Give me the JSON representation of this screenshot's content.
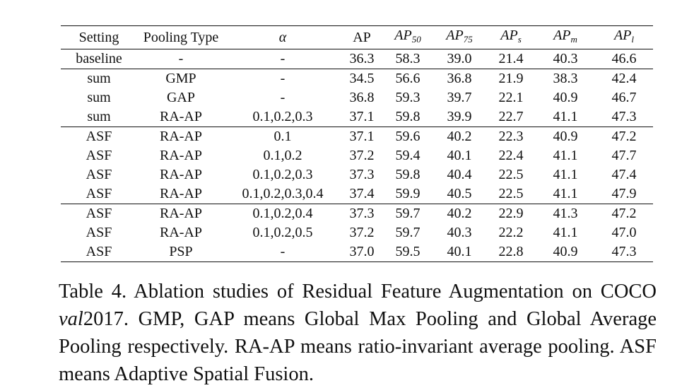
{
  "table": {
    "headers": {
      "setting": "Setting",
      "pooling_type": "Pooling Type",
      "alpha": "α",
      "ap": "AP",
      "ap50_base": "AP",
      "ap50_sub": "50",
      "ap75_base": "AP",
      "ap75_sub": "75",
      "aps_base": "AP",
      "aps_sub": "s",
      "apm_base": "AP",
      "apm_sub": "m",
      "apl_base": "AP",
      "apl_sub": "l"
    },
    "rows": [
      {
        "setting": "baseline",
        "pooling": "-",
        "alpha": "-",
        "ap": "36.3",
        "ap50": "58.3",
        "ap75": "39.0",
        "aps": "21.4",
        "apm": "40.3",
        "apl": "46.6"
      },
      {
        "setting": "sum",
        "pooling": "GMP",
        "alpha": "-",
        "ap": "34.5",
        "ap50": "56.6",
        "ap75": "36.8",
        "aps": "21.9",
        "apm": "38.3",
        "apl": "42.4"
      },
      {
        "setting": "sum",
        "pooling": "GAP",
        "alpha": "-",
        "ap": "36.8",
        "ap50": "59.3",
        "ap75": "39.7",
        "aps": "22.1",
        "apm": "40.9",
        "apl": "46.7"
      },
      {
        "setting": "sum",
        "pooling": "RA-AP",
        "alpha": "0.1,0.2,0.3",
        "ap": "37.1",
        "ap50": "59.8",
        "ap75": "39.9",
        "aps": "22.7",
        "apm": "41.1",
        "apl": "47.3"
      },
      {
        "setting": "ASF",
        "pooling": "RA-AP",
        "alpha": "0.1",
        "ap": "37.1",
        "ap50": "59.6",
        "ap75": "40.2",
        "aps": "22.3",
        "apm": "40.9",
        "apl": "47.2"
      },
      {
        "setting": "ASF",
        "pooling": "RA-AP",
        "alpha": "0.1,0.2",
        "ap": "37.2",
        "ap50": "59.4",
        "ap75": "40.1",
        "aps": "22.4",
        "apm": "41.1",
        "apl": "47.7"
      },
      {
        "setting": "ASF",
        "pooling": "RA-AP",
        "alpha": "0.1,0.2,0.3",
        "ap": "37.3",
        "ap50": "59.8",
        "ap75": "40.4",
        "aps": "22.5",
        "apm": "41.1",
        "apl": "47.4"
      },
      {
        "setting": "ASF",
        "pooling": "RA-AP",
        "alpha": "0.1,0.2,0.3,0.4",
        "ap": "37.4",
        "ap50": "59.9",
        "ap75": "40.5",
        "aps": "22.5",
        "apm": "41.1",
        "apl": "47.9"
      },
      {
        "setting": "ASF",
        "pooling": "RA-AP",
        "alpha": "0.1,0.2,0.4",
        "ap": "37.3",
        "ap50": "59.7",
        "ap75": "40.2",
        "aps": "22.9",
        "apm": "41.3",
        "apl": "47.2"
      },
      {
        "setting": "ASF",
        "pooling": "RA-AP",
        "alpha": "0.1,0.2,0.5",
        "ap": "37.2",
        "ap50": "59.7",
        "ap75": "40.3",
        "aps": "22.2",
        "apm": "41.1",
        "apl": "47.0"
      },
      {
        "setting": "ASF",
        "pooling": "PSP",
        "alpha": "-",
        "ap": "37.0",
        "ap50": "59.5",
        "ap75": "40.1",
        "aps": "22.8",
        "apm": "40.9",
        "apl": "47.3"
      }
    ]
  },
  "caption": {
    "part1": "Table 4. Ablation studies of Residual Feature Augmentation on COCO ",
    "italic": "val",
    "part2": "2017.  GMP, GAP means Global Max Pooling and Global Average Pooling respectively.  RA-AP means ratio-invariant average pooling. ASF means Adaptive Spatial Fusion."
  }
}
